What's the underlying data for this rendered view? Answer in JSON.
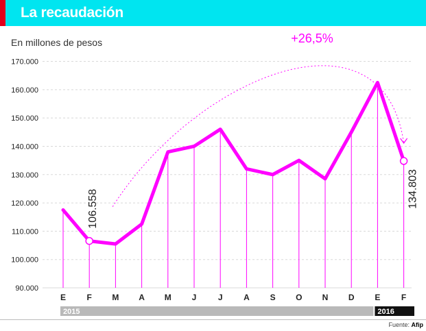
{
  "header": {
    "title": "La recaudación"
  },
  "subtitle": "En millones de pesos",
  "source": {
    "label": "Fuente:",
    "name": "Afip"
  },
  "colors": {
    "header": "#00e5f0",
    "accent": "#e3001b",
    "line": "#ff00ff",
    "year2015": "#b9b9b9",
    "year2016": "#111111"
  },
  "chart_data": {
    "type": "line",
    "categories": [
      "E",
      "F",
      "M",
      "A",
      "M",
      "J",
      "J",
      "A",
      "S",
      "O",
      "N",
      "D",
      "E",
      "F"
    ],
    "values": [
      117500,
      106558,
      105500,
      112500,
      138000,
      140000,
      146000,
      132000,
      130000,
      135000,
      128500,
      145000,
      162500,
      134803
    ],
    "ylim": [
      90000,
      170000
    ],
    "yticks": [
      "90.000",
      "100.000",
      "110.000",
      "120.000",
      "130.000",
      "140.000",
      "150.000",
      "160.000",
      "170.000"
    ],
    "ytick_values": [
      90000,
      100000,
      110000,
      120000,
      130000,
      140000,
      150000,
      160000,
      170000
    ],
    "grid": true,
    "years": [
      {
        "label": "2015",
        "from": 0,
        "to": 11
      },
      {
        "label": "2016",
        "from": 12,
        "to": 13
      }
    ],
    "labels": [
      {
        "index": 1,
        "text": "106.558"
      },
      {
        "index": 13,
        "text": "134.803"
      }
    ],
    "annotation": {
      "text": "+26,5%",
      "from": 1,
      "to": 13
    }
  }
}
